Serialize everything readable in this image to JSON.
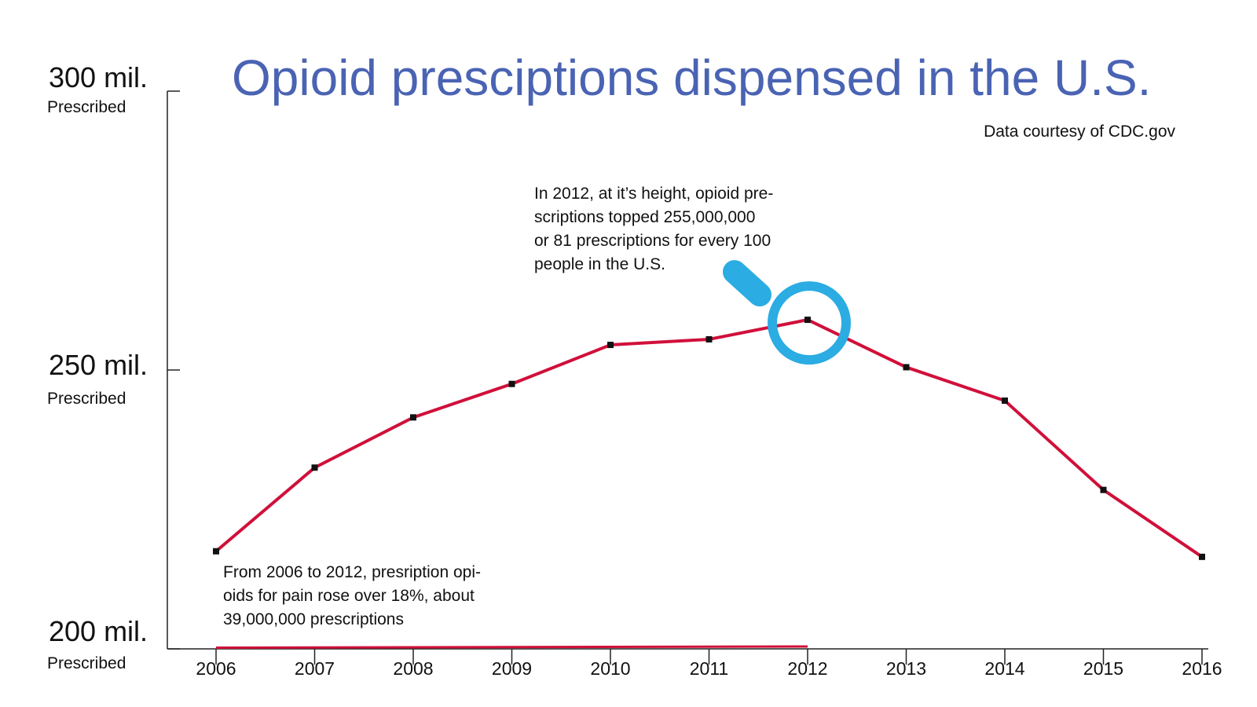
{
  "chart_data": {
    "type": "line",
    "title": "Opioid presciptions dispensed in the U.S.",
    "subtitle": "Data courtesy of CDC.gov",
    "x": [
      "2006",
      "2007",
      "2008",
      "2009",
      "2010",
      "2011",
      "2012",
      "2013",
      "2014",
      "2015",
      "2016"
    ],
    "series": [
      {
        "values": [
          217.5,
          232.5,
          241.5,
          247.5,
          254.5,
          255.5,
          259.0,
          250.5,
          244.5,
          228.5,
          216.5
        ]
      }
    ],
    "ylim": [
      200,
      300
    ],
    "yticks": [
      {
        "value": 300,
        "label": "300 mil.",
        "sublabel": "Prescribed"
      },
      {
        "value": 250,
        "label": "250 mil.",
        "sublabel": "Prescribed"
      },
      {
        "value": 200,
        "label": "200 mil.",
        "sublabel": "Prescribed"
      }
    ],
    "annotations": {
      "peak": [
        "In 2012, at it’s height, opioid pre-",
        "scriptions topped 255,000,000",
        "or 81 prescriptions for every 100",
        "people in the U.S."
      ],
      "rise": [
        "From 2006 to 2012, presription opi-",
        "oids for pain rose over 18%, about",
        "39,000,000 prescriptions"
      ]
    },
    "highlight_year": "2012",
    "rise_range": [
      "2006",
      "2012"
    ],
    "grid": false
  },
  "colors": {
    "line": "#d0103a",
    "marker": "#111111",
    "title": "#4a63b3",
    "magnifier": "#2bace2",
    "axis": "#222222"
  },
  "icons": {
    "highlight": "magnifier-icon"
  }
}
